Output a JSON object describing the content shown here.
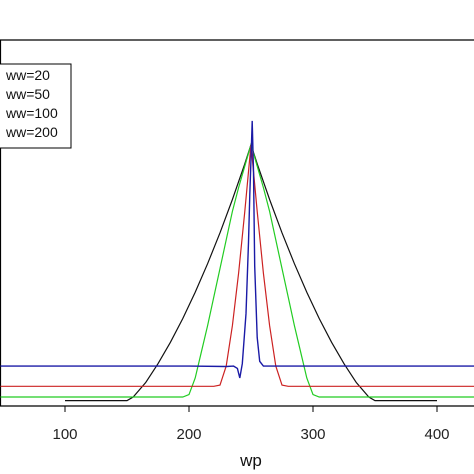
{
  "chart_data": {
    "type": "line",
    "title": "",
    "xlabel": "wp",
    "ylabel": "",
    "xlim": [
      48,
      430
    ],
    "ylim": [
      -0.03,
      1.25
    ],
    "x_ticks": [
      "100",
      "200",
      "300",
      "400"
    ],
    "grid": false,
    "legend": {
      "placement": "top-left",
      "entries": [
        "ww=20",
        "ww=50",
        "ww=100",
        "ww=200"
      ]
    },
    "series": [
      {
        "name": "ww=20",
        "color": "#1a1aa6",
        "points": [
          [
            48,
            0.13
          ],
          [
            100,
            0.13
          ],
          [
            150,
            0.13
          ],
          [
            200,
            0.13
          ],
          [
            230,
            0.128
          ],
          [
            236,
            0.13
          ],
          [
            239,
            0.12
          ],
          [
            241,
            0.08
          ],
          [
            243,
            0.14
          ],
          [
            246,
            0.35
          ],
          [
            248,
            0.65
          ],
          [
            249,
            0.85
          ],
          [
            250,
            1.0
          ],
          [
            251,
            1.16
          ],
          [
            252,
            0.95
          ],
          [
            253,
            0.55
          ],
          [
            255,
            0.25
          ],
          [
            257,
            0.15
          ],
          [
            260,
            0.13
          ],
          [
            300,
            0.13
          ],
          [
            350,
            0.13
          ],
          [
            430,
            0.13
          ]
        ]
      },
      {
        "name": "ww=50",
        "color": "#cc2222",
        "points": [
          [
            48,
            0.045
          ],
          [
            100,
            0.045
          ],
          [
            150,
            0.045
          ],
          [
            200,
            0.045
          ],
          [
            220,
            0.045
          ],
          [
            225,
            0.05
          ],
          [
            230,
            0.13
          ],
          [
            235,
            0.3
          ],
          [
            240,
            0.52
          ],
          [
            245,
            0.78
          ],
          [
            250,
            1.06
          ],
          [
            255,
            0.78
          ],
          [
            260,
            0.52
          ],
          [
            265,
            0.3
          ],
          [
            270,
            0.13
          ],
          [
            275,
            0.05
          ],
          [
            280,
            0.045
          ],
          [
            350,
            0.045
          ],
          [
            430,
            0.045
          ]
        ]
      },
      {
        "name": "ww=100",
        "color": "#22cc22",
        "points": [
          [
            48,
            0.0
          ],
          [
            150,
            0.0
          ],
          [
            195,
            0.0
          ],
          [
            200,
            0.01
          ],
          [
            205,
            0.08
          ],
          [
            210,
            0.19
          ],
          [
            215,
            0.3
          ],
          [
            220,
            0.42
          ],
          [
            225,
            0.54
          ],
          [
            230,
            0.66
          ],
          [
            235,
            0.78
          ],
          [
            240,
            0.88
          ],
          [
            245,
            0.97
          ],
          [
            250,
            1.06
          ],
          [
            255,
            0.97
          ],
          [
            260,
            0.88
          ],
          [
            265,
            0.78
          ],
          [
            270,
            0.66
          ],
          [
            275,
            0.54
          ],
          [
            280,
            0.42
          ],
          [
            285,
            0.3
          ],
          [
            290,
            0.19
          ],
          [
            295,
            0.08
          ],
          [
            300,
            0.01
          ],
          [
            305,
            0.0
          ],
          [
            430,
            0.0
          ]
        ]
      },
      {
        "name": "ww=200",
        "color": "#111111",
        "points": [
          [
            100,
            -0.015
          ],
          [
            150,
            -0.015
          ],
          [
            155,
            0.0
          ],
          [
            165,
            0.06
          ],
          [
            175,
            0.14
          ],
          [
            185,
            0.23
          ],
          [
            195,
            0.33
          ],
          [
            205,
            0.44
          ],
          [
            215,
            0.56
          ],
          [
            225,
            0.69
          ],
          [
            235,
            0.83
          ],
          [
            245,
            0.98
          ],
          [
            250,
            1.06
          ],
          [
            255,
            0.98
          ],
          [
            265,
            0.83
          ],
          [
            275,
            0.69
          ],
          [
            285,
            0.56
          ],
          [
            295,
            0.44
          ],
          [
            305,
            0.33
          ],
          [
            315,
            0.23
          ],
          [
            325,
            0.14
          ],
          [
            335,
            0.06
          ],
          [
            345,
            0.0
          ],
          [
            350,
            -0.015
          ],
          [
            400,
            -0.015
          ]
        ]
      }
    ]
  }
}
